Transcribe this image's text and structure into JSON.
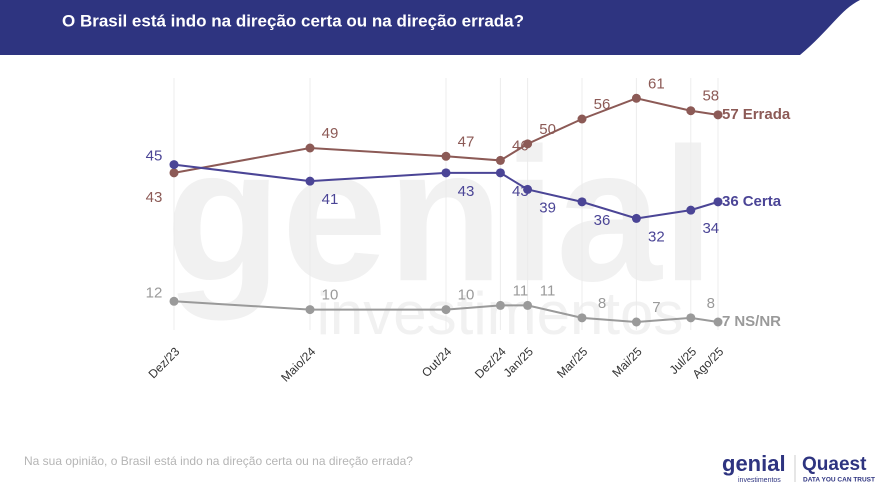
{
  "chart_data": {
    "type": "line",
    "title": "O Brasil está indo na direção certa ou na direção errada?",
    "x": [
      "Dez/23",
      "Maio/24",
      "Out/24",
      "Dez/24",
      "Jan/25",
      "Mar/25",
      "Mai/25",
      "Jul/25",
      "Ago/25"
    ],
    "ylim": [
      0,
      70
    ],
    "grid": true,
    "series": [
      {
        "name": "Errada",
        "color": "#8c5a56",
        "values": [
          43,
          49,
          47,
          46,
          50,
          56,
          61,
          58,
          57
        ]
      },
      {
        "name": "Certa",
        "color": "#4b4596",
        "values": [
          45,
          41,
          43,
          43,
          39,
          36,
          32,
          34,
          36
        ]
      },
      {
        "name": "NS/NR",
        "color": "#9a9a9a",
        "values": [
          12,
          10,
          10,
          11,
          11,
          8,
          7,
          8,
          7
        ]
      }
    ],
    "note": "Na sua opinião, o Brasil está indo na direção certa ou na direção errada?",
    "watermark": [
      "genial",
      "investimentos"
    ],
    "logos": {
      "genial": "genial",
      "genial_sub": "investimentos",
      "quaest": "Quaest",
      "quaest_sub": "DATA YOU CAN TRUST"
    }
  }
}
